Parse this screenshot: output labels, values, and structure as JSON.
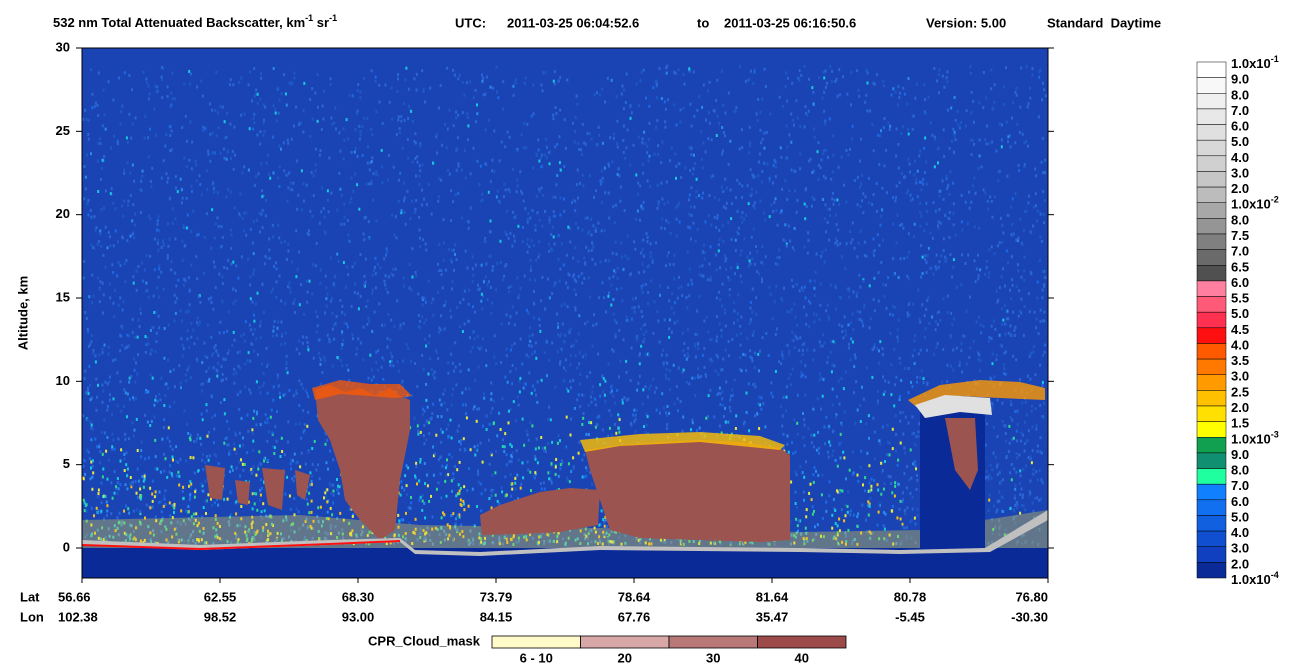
{
  "chart_data": {
    "type": "curtain",
    "title_parts": [
      {
        "text": "532 nm Total Attenuated Backscatter, km"
      },
      {
        "sup": "-1"
      },
      {
        "text": " sr"
      },
      {
        "sup": "-1"
      }
    ],
    "utc_label": "UTC:",
    "utc_start": "2011-03-25 06:04:52.6",
    "utc_to": "to",
    "utc_end": "2011-03-25 06:16:50.6",
    "version": "Version: 5.00",
    "mode": "Standard  Daytime",
    "y_label": "Altitude, km",
    "ylim": [
      -1.8,
      30
    ],
    "yticks": [
      0,
      5,
      10,
      15,
      20,
      25,
      30
    ],
    "lat_label": "Lat",
    "lon_label": "Lon",
    "lat": [
      "56.66",
      "62.55",
      "68.30",
      "73.79",
      "78.64",
      "81.64",
      "80.78",
      "76.80"
    ],
    "lon": [
      "102.38",
      "98.52",
      "93.00",
      "84.15",
      "67.76",
      "35.47",
      "-5.45",
      "-30.30"
    ],
    "colorbar": {
      "labels": [
        {
          "text": "1.0x10",
          "sup": "-1"
        },
        {
          "text": "9.0"
        },
        {
          "text": "8.0"
        },
        {
          "text": "7.0"
        },
        {
          "text": "6.0"
        },
        {
          "text": "5.0"
        },
        {
          "text": "4.0"
        },
        {
          "text": "3.0"
        },
        {
          "text": "2.0"
        },
        {
          "text": "1.0x10",
          "sup": "-2"
        },
        {
          "text": "8.0"
        },
        {
          "text": "7.5"
        },
        {
          "text": "7.0"
        },
        {
          "text": "6.5"
        },
        {
          "text": "6.0"
        },
        {
          "text": "5.5"
        },
        {
          "text": "5.0"
        },
        {
          "text": "4.5"
        },
        {
          "text": "4.0"
        },
        {
          "text": "3.5"
        },
        {
          "text": "3.0"
        },
        {
          "text": "2.5"
        },
        {
          "text": "2.0"
        },
        {
          "text": "1.5"
        },
        {
          "text": "1.0x10",
          "sup": "-3"
        },
        {
          "text": "9.0"
        },
        {
          "text": "8.0"
        },
        {
          "text": "7.0"
        },
        {
          "text": "6.0"
        },
        {
          "text": "5.0"
        },
        {
          "text": "4.0"
        },
        {
          "text": "3.0"
        },
        {
          "text": "2.0"
        },
        {
          "text": "1.0x10",
          "sup": "-4"
        }
      ],
      "colors": [
        "#ffffff",
        "#f8f8f8",
        "#f0f0f0",
        "#e8e8e8",
        "#e0e0e0",
        "#d8d8d8",
        "#d0d0d0",
        "#c6c6c6",
        "#bcbcbc",
        "#a8a8a8",
        "#959595",
        "#808080",
        "#6a6a6a",
        "#505050",
        "#ff7fa0",
        "#ff5a78",
        "#ff3050",
        "#ff1010",
        "#ff5a00",
        "#ff7800",
        "#ff9a00",
        "#ffc000",
        "#ffe000",
        "#ffff00",
        "#10a050",
        "#109070",
        "#20ffa0",
        "#1080ff",
        "#1070f0",
        "#1060e0",
        "#1050d0",
        "#1040c0",
        "#0a2a98"
      ]
    },
    "mask_label": "CPR_Cloud_mask",
    "mask_categories": [
      "6 - 10",
      "20",
      "30",
      "40"
    ],
    "mask_colors": [
      "#fffbc8",
      "#d8a8a8",
      "#b87878",
      "#9c4a4a"
    ]
  }
}
